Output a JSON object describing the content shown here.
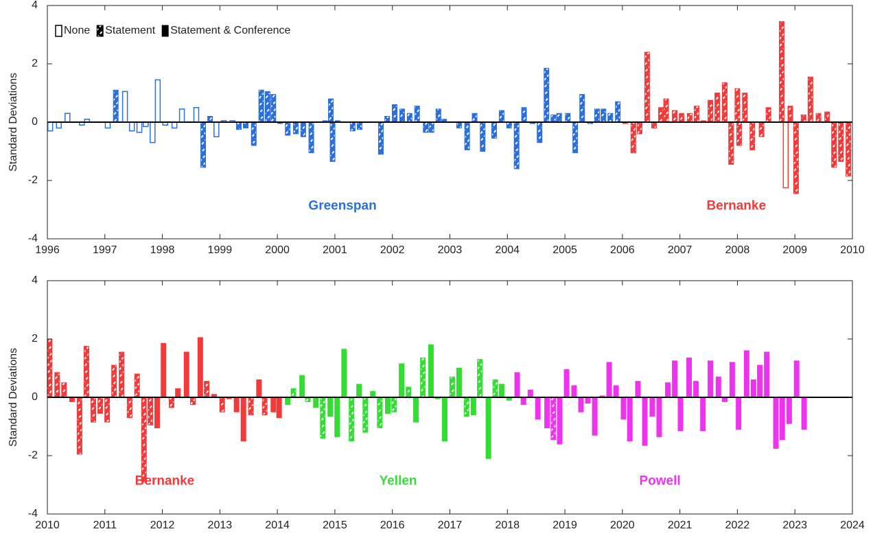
{
  "chart_data": [
    {
      "type": "bar",
      "ylabel": "Standard Deviations",
      "xlim": [
        1996,
        2010
      ],
      "xticks": [
        1996,
        1997,
        1998,
        1999,
        2000,
        2001,
        2002,
        2003,
        2004,
        2005,
        2006,
        2007,
        2008,
        2009,
        2010
      ],
      "ylim": [
        -4,
        4
      ],
      "yticks": [
        -4,
        -2,
        0,
        2,
        4
      ],
      "legend_position": "upper left",
      "legend": [
        {
          "label": "None",
          "kind": "none"
        },
        {
          "label": "Statement",
          "kind": "statement"
        },
        {
          "label": "Statement & Conference",
          "kind": "conference"
        }
      ],
      "series": [
        {
          "name": "Greenspan",
          "color": "#2a6fdb",
          "x": [
            1996.05,
            1996.2,
            1996.35,
            1996.6,
            1996.69,
            1997.05,
            1997.19,
            1997.35,
            1997.47,
            1997.6,
            1997.71,
            1997.83,
            1997.92,
            1998.05,
            1998.21,
            1998.34,
            1998.59,
            1998.71,
            1998.83,
            1998.94,
            1999.07,
            1999.22,
            1999.33,
            1999.45,
            1999.59,
            1999.72,
            1999.83,
            1999.93,
            2000.05,
            2000.18,
            2000.32,
            2000.45,
            2000.59,
            2000.83,
            2000.93,
            2000.96,
            2001.05,
            2001.31,
            2001.43,
            2001.8,
            2001.91,
            2002.04,
            2002.17,
            2002.3,
            2002.43,
            2002.58,
            2002.68,
            2002.8,
            2002.9,
            2003.16,
            2003.3,
            2003.43,
            2003.57,
            2003.77,
            2003.9,
            2004.03,
            2004.16,
            2004.29,
            2004.44,
            2004.56,
            2004.68,
            2004.8,
            2004.9,
            2005.05,
            2005.18,
            2005.3,
            2005.44,
            2005.56,
            2005.67,
            2005.79,
            2005.92
          ],
          "values": [
            -0.3,
            -0.2,
            0.3,
            -0.1,
            0.1,
            -0.2,
            1.1,
            1.05,
            -0.3,
            -0.35,
            -0.15,
            -0.7,
            1.45,
            -0.1,
            -0.2,
            0.45,
            0.5,
            -1.55,
            0.2,
            -0.5,
            0.05,
            0.05,
            -0.25,
            -0.2,
            -0.8,
            1.1,
            1.05,
            0.95,
            -0.05,
            -0.45,
            -0.4,
            -0.5,
            -1.05,
            0.05,
            0.8,
            -1.35,
            0.05,
            -0.3,
            -0.25,
            -1.1,
            0.2,
            0.6,
            0.45,
            0.3,
            0.55,
            -0.35,
            -0.35,
            0.45,
            0.1,
            -0.2,
            -0.95,
            0.3,
            -1.0,
            -0.55,
            0.4,
            -0.2,
            -1.6,
            0.5,
            -0.05,
            -0.7,
            1.85,
            0.25,
            0.3,
            0.3,
            -1.05,
            0.95,
            -0.05,
            0.45,
            0.45,
            0.3,
            0.7
          ],
          "kinds": [
            "none",
            "none",
            "none",
            "none",
            "none",
            "none",
            "statement",
            "none",
            "none",
            "none",
            "none",
            "none",
            "none",
            "none",
            "none",
            "none",
            "none",
            "statement",
            "statement",
            "none",
            "none",
            "none",
            "statement",
            "statement",
            "statement",
            "statement",
            "statement",
            "statement",
            "statement",
            "statement",
            "statement",
            "statement",
            "statement",
            "statement",
            "statement",
            "statement",
            "statement",
            "statement",
            "statement",
            "statement",
            "statement",
            "statement",
            "statement",
            "statement",
            "statement",
            "statement",
            "statement",
            "statement",
            "statement",
            "statement",
            "statement",
            "statement",
            "statement",
            "statement",
            "statement",
            "statement",
            "statement",
            "statement",
            "statement",
            "statement",
            "statement",
            "statement",
            "statement",
            "statement",
            "statement",
            "statement",
            "statement",
            "statement",
            "statement",
            "statement",
            "statement"
          ]
        },
        {
          "name": "Bernanke",
          "color": "#f23a3a",
          "x": [
            2006.05,
            2006.19,
            2006.3,
            2006.43,
            2006.55,
            2006.67,
            2006.76,
            2006.91,
            2007.03,
            2007.17,
            2007.29,
            2007.41,
            2007.53,
            2007.65,
            2007.78,
            2007.89,
            2008.0,
            2008.03,
            2008.13,
            2008.26,
            2008.42,
            2008.54,
            2008.77,
            2008.84,
            2008.92,
            2009.02,
            2009.15,
            2009.27,
            2009.41,
            2009.56,
            2009.68,
            2009.8,
            2009.93
          ],
          "values": [
            -0.05,
            -1.05,
            -0.4,
            2.4,
            -0.2,
            0.5,
            0.8,
            0.4,
            0.3,
            0.3,
            0.55,
            0.05,
            0.75,
            1.0,
            1.35,
            -1.45,
            1.15,
            -0.8,
            1.0,
            -0.95,
            -0.5,
            0.5,
            3.45,
            -2.25,
            0.55,
            -2.45,
            0.25,
            1.55,
            0.3,
            0.35,
            -1.55,
            -1.35,
            -1.85
          ],
          "kinds": [
            "statement",
            "statement",
            "statement",
            "statement",
            "statement",
            "statement",
            "statement",
            "statement",
            "statement",
            "statement",
            "statement",
            "statement",
            "statement",
            "statement",
            "statement",
            "statement",
            "statement",
            "statement",
            "statement",
            "statement",
            "statement",
            "statement",
            "statement",
            "none",
            "statement",
            "statement",
            "statement",
            "statement",
            "statement",
            "statement",
            "statement",
            "statement",
            "statement"
          ]
        }
      ]
    },
    {
      "type": "bar",
      "ylabel": "Standard Deviations",
      "xlim": [
        2010,
        2024
      ],
      "xticks": [
        2010,
        2011,
        2012,
        2013,
        2014,
        2015,
        2016,
        2017,
        2018,
        2019,
        2020,
        2021,
        2022,
        2023,
        2024
      ],
      "ylim": [
        -4,
        4
      ],
      "yticks": [
        -4,
        -2,
        0,
        2,
        4
      ],
      "series": [
        {
          "name": "Bernanke",
          "color": "#f23a3a",
          "x": [
            2010.04,
            2010.17,
            2010.29,
            2010.43,
            2010.56,
            2010.68,
            2010.8,
            2010.92,
            2011.04,
            2011.16,
            2011.29,
            2011.43,
            2011.56,
            2011.68,
            2011.79,
            2011.91,
            2012.02,
            2012.16,
            2012.27,
            2012.42,
            2012.53,
            2012.66,
            2012.77,
            2012.9,
            2013.04,
            2013.16,
            2013.29,
            2013.41,
            2013.54,
            2013.68,
            2013.78,
            2013.93,
            2014.03
          ],
          "values": [
            2.0,
            0.85,
            0.5,
            -0.15,
            -1.95,
            1.75,
            -0.85,
            -0.55,
            -0.85,
            1.1,
            1.55,
            -0.7,
            0.8,
            -2.9,
            -0.95,
            -1.05,
            1.85,
            -0.35,
            0.3,
            1.55,
            -0.25,
            2.05,
            0.55,
            0.1,
            -0.5,
            -0.05,
            -0.5,
            -1.5,
            -0.6,
            0.6,
            -0.6,
            -0.5,
            -0.7
          ],
          "kinds": [
            "statement",
            "statement",
            "statement",
            "statement",
            "statement",
            "statement",
            "statement",
            "statement",
            "statement",
            "statement",
            "statement",
            "statement",
            "statement",
            "statement",
            "statement",
            "conference",
            "conference",
            "statement",
            "conference",
            "conference",
            "statement",
            "conference",
            "statement",
            "conference",
            "statement",
            "statement",
            "conference",
            "conference",
            "statement",
            "conference",
            "statement",
            "conference",
            "conference"
          ]
        },
        {
          "name": "Yellen",
          "color": "#33dd33",
          "x": [
            2014.18,
            2014.28,
            2014.43,
            2014.53,
            2014.67,
            2014.79,
            2014.92,
            2015.04,
            2015.16,
            2015.29,
            2015.42,
            2015.53,
            2015.66,
            2015.78,
            2015.92,
            2016.03,
            2016.16,
            2016.28,
            2016.41,
            2016.53,
            2016.67,
            2016.79,
            2016.91,
            2017.04,
            2017.16,
            2017.29,
            2017.41,
            2017.52,
            2017.67,
            2017.79,
            2017.9,
            2018.03
          ],
          "values": [
            -0.25,
            0.3,
            0.75,
            -0.15,
            -0.35,
            -1.4,
            -0.65,
            -1.35,
            1.65,
            -1.5,
            0.45,
            -1.2,
            0.2,
            -1.05,
            -0.55,
            -0.5,
            1.15,
            0.35,
            -0.85,
            1.35,
            1.8,
            -0.05,
            -1.5,
            0.7,
            1.0,
            -0.65,
            -0.6,
            1.3,
            -2.1,
            0.6,
            0.45,
            -0.1
          ],
          "kinds": [
            "conference",
            "statement",
            "conference",
            "statement",
            "conference",
            "statement",
            "conference",
            "conference",
            "conference",
            "statement",
            "conference",
            "statement",
            "conference",
            "statement",
            "conference",
            "statement",
            "conference",
            "statement",
            "conference",
            "statement",
            "conference",
            "statement",
            "conference",
            "statement",
            "conference",
            "statement",
            "conference",
            "statement",
            "conference",
            "statement",
            "conference",
            "conference"
          ]
        },
        {
          "name": "Powell",
          "color": "#ee33ee",
          "x": [
            2018.17,
            2018.28,
            2018.4,
            2018.53,
            2018.69,
            2018.8,
            2018.91,
            2019.03,
            2019.16,
            2019.28,
            2019.4,
            2019.52,
            2019.65,
            2019.77,
            2019.89,
            2020.02,
            2020.13,
            2020.27,
            2020.39,
            2020.52,
            2020.64,
            2020.79,
            2020.91,
            2021.01,
            2021.16,
            2021.28,
            2021.4,
            2021.53,
            2021.67,
            2021.78,
            2021.91,
            2022.02,
            2022.16,
            2022.28,
            2022.39,
            2022.51,
            2022.67,
            2022.78,
            2022.9,
            2023.03,
            2023.16
          ],
          "values": [
            0.85,
            -0.25,
            0.25,
            -0.75,
            -1.05,
            -1.45,
            -1.6,
            0.95,
            0.4,
            -0.5,
            -0.2,
            -1.3,
            0.05,
            1.2,
            0.4,
            -0.75,
            -1.5,
            0.55,
            -1.65,
            -0.65,
            -1.35,
            0.5,
            1.25,
            -1.15,
            1.35,
            0.55,
            -1.15,
            1.25,
            0.7,
            -0.15,
            1.2,
            -1.1,
            1.6,
            0.6,
            1.1,
            1.55,
            -1.75,
            -1.45,
            -0.9,
            1.25,
            -1.1
          ],
          "kinds": [
            "conference",
            "conference",
            "conference",
            "conference",
            "conference",
            "statement",
            "conference",
            "conference",
            "conference",
            "conference",
            "conference",
            "conference",
            "conference",
            "conference",
            "conference",
            "conference",
            "conference",
            "conference",
            "conference",
            "conference",
            "conference",
            "conference",
            "conference",
            "conference",
            "conference",
            "conference",
            "conference",
            "conference",
            "conference",
            "conference",
            "conference",
            "conference",
            "conference",
            "conference",
            "conference",
            "conference",
            "conference",
            "conference",
            "conference",
            "conference",
            "conference"
          ]
        }
      ]
    }
  ]
}
